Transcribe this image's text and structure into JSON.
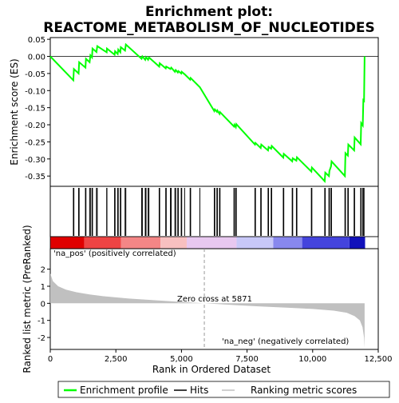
{
  "chart_data": {
    "type": "line",
    "title_line1": "Enrichment plot:",
    "title_line2": "REACTOME_METABOLISM_OF_NUCLEOTIDES",
    "es_panel": {
      "ylabel": "Enrichment score (ES)",
      "ylim": [
        -0.38,
        0.055
      ],
      "yticks": [
        0.05,
        0.0,
        -0.05,
        -0.1,
        -0.15,
        -0.2,
        -0.25,
        -0.3,
        -0.35
      ],
      "ytick_labels": [
        "0.05",
        "0.00",
        "-0.05",
        "-0.10",
        "-0.15",
        "-0.20",
        "-0.25",
        "-0.30",
        "-0.35"
      ],
      "line_color": "#00ff00",
      "series_name": "Enrichment profile",
      "points": [
        [
          0,
          0.0
        ],
        [
          880,
          -0.07
        ],
        [
          900,
          -0.037
        ],
        [
          1080,
          -0.05
        ],
        [
          1100,
          -0.017
        ],
        [
          1340,
          -0.033
        ],
        [
          1360,
          -0.007
        ],
        [
          1500,
          -0.017
        ],
        [
          1530,
          0.003
        ],
        [
          1590,
          -0.003
        ],
        [
          1610,
          0.023
        ],
        [
          1760,
          0.013
        ],
        [
          1790,
          0.03
        ],
        [
          2150,
          0.012
        ],
        [
          2160,
          0.023
        ],
        [
          2450,
          0.005
        ],
        [
          2470,
          0.015
        ],
        [
          2570,
          0.007
        ],
        [
          2590,
          0.02
        ],
        [
          2670,
          0.012
        ],
        [
          2690,
          0.027
        ],
        [
          2850,
          0.017
        ],
        [
          2880,
          0.035
        ],
        [
          3480,
          -0.007
        ],
        [
          3510,
          0.0
        ],
        [
          3620,
          -0.01
        ],
        [
          3650,
          -0.002
        ],
        [
          3730,
          -0.01
        ],
        [
          3760,
          -0.003
        ],
        [
          4150,
          -0.03
        ],
        [
          4170,
          -0.02
        ],
        [
          4400,
          -0.035
        ],
        [
          4420,
          -0.03
        ],
        [
          4580,
          -0.037
        ],
        [
          4610,
          -0.033
        ],
        [
          4750,
          -0.045
        ],
        [
          4780,
          -0.04
        ],
        [
          4860,
          -0.047
        ],
        [
          4880,
          -0.043
        ],
        [
          4990,
          -0.05
        ],
        [
          5010,
          -0.045
        ],
        [
          5120,
          -0.052
        ],
        [
          5330,
          -0.068
        ],
        [
          5350,
          -0.063
        ],
        [
          5700,
          -0.09
        ],
        [
          6250,
          -0.16
        ],
        [
          6270,
          -0.155
        ],
        [
          6350,
          -0.162
        ],
        [
          6370,
          -0.158
        ],
        [
          6450,
          -0.168
        ],
        [
          6470,
          -0.163
        ],
        [
          7000,
          -0.205
        ],
        [
          7020,
          -0.2
        ],
        [
          7070,
          -0.207
        ],
        [
          7090,
          -0.198
        ],
        [
          7800,
          -0.258
        ],
        [
          7820,
          -0.253
        ],
        [
          8020,
          -0.268
        ],
        [
          8040,
          -0.258
        ],
        [
          8300,
          -0.275
        ],
        [
          8320,
          -0.265
        ],
        [
          8420,
          -0.27
        ],
        [
          8440,
          -0.262
        ],
        [
          8880,
          -0.296
        ],
        [
          8900,
          -0.285
        ],
        [
          9220,
          -0.307
        ],
        [
          9240,
          -0.298
        ],
        [
          9380,
          -0.305
        ],
        [
          9400,
          -0.295
        ],
        [
          9950,
          -0.337
        ],
        [
          9970,
          -0.325
        ],
        [
          10460,
          -0.365
        ],
        [
          10480,
          -0.34
        ],
        [
          10620,
          -0.35
        ],
        [
          10640,
          -0.335
        ],
        [
          10700,
          -0.322
        ],
        [
          10720,
          -0.307
        ],
        [
          11230,
          -0.35
        ],
        [
          11250,
          -0.283
        ],
        [
          11340,
          -0.29
        ],
        [
          11360,
          -0.258
        ],
        [
          11580,
          -0.275
        ],
        [
          11600,
          -0.237
        ],
        [
          11830,
          -0.257
        ],
        [
          11850,
          -0.195
        ],
        [
          11910,
          -0.202
        ],
        [
          11930,
          -0.128
        ],
        [
          11960,
          -0.13
        ],
        [
          11980,
          0.0
        ]
      ]
    },
    "hits": [
      880,
      900,
      1080,
      1100,
      1340,
      1360,
      1500,
      1530,
      1590,
      1610,
      1760,
      1790,
      2150,
      2160,
      2450,
      2470,
      2570,
      2590,
      2670,
      2690,
      2850,
      2880,
      3480,
      3510,
      3620,
      3650,
      3730,
      3760,
      4150,
      4170,
      4400,
      4420,
      4580,
      4610,
      4750,
      4780,
      4860,
      4880,
      4990,
      5010,
      5120,
      5330,
      5350,
      5700,
      6250,
      6270,
      6350,
      6370,
      6450,
      6470,
      7000,
      7020,
      7070,
      7090,
      7800,
      7820,
      8020,
      8040,
      8300,
      8320,
      8420,
      8440,
      8880,
      8900,
      9220,
      9240,
      9380,
      9400,
      9950,
      9970,
      10460,
      10480,
      10620,
      10640,
      10700,
      10720,
      11230,
      11250,
      11340,
      11360,
      11580,
      11600,
      11830,
      11850,
      11910,
      11930,
      11960
    ],
    "rank_panel": {
      "ylabel": "Ranked list metric (PreRanked)",
      "xlabel": "Rank in Ordered Dataset",
      "ylim": [
        -2.7,
        3.2
      ],
      "yticks": [
        2,
        1,
        0,
        -1,
        -2
      ],
      "ytick_labels": [
        "2",
        "1",
        "0",
        "-1",
        "-2"
      ],
      "xlim": [
        0,
        12500
      ],
      "xticks": [
        0,
        2500,
        5000,
        7500,
        10000,
        12500
      ],
      "xtick_labels": [
        "0",
        "2,500",
        "5,000",
        "7,500",
        "10,000",
        "12,500"
      ],
      "fill_color": "#c0c0c0",
      "curve": [
        [
          0,
          1.75
        ],
        [
          100,
          1.3
        ],
        [
          300,
          1.0
        ],
        [
          600,
          0.8
        ],
        [
          1000,
          0.65
        ],
        [
          1500,
          0.52
        ],
        [
          2000,
          0.42
        ],
        [
          3000,
          0.28
        ],
        [
          4000,
          0.18
        ],
        [
          5000,
          0.08
        ],
        [
          5871,
          0.0
        ],
        [
          7000,
          -0.1
        ],
        [
          8000,
          -0.18
        ],
        [
          9000,
          -0.25
        ],
        [
          10000,
          -0.33
        ],
        [
          10800,
          -0.43
        ],
        [
          11300,
          -0.55
        ],
        [
          11600,
          -0.75
        ],
        [
          11800,
          -1.0
        ],
        [
          11900,
          -1.4
        ],
        [
          11960,
          -2.0
        ],
        [
          11980,
          -2.6
        ]
      ],
      "zero_cross_rank": 5871,
      "zero_cross_label": "Zero cross at 5871",
      "pos_label": "'na_pos' (positively correlated)",
      "neg_label": "'na_neg' (negatively correlated)",
      "pos_label_color": "#cc0000",
      "neg_label_color": "#0000cc"
    },
    "heat_bar": {
      "colors": [
        "#e00000",
        "#ee4444",
        "#f48686",
        "#f8c0c0",
        "#e8c8f0",
        "#c8c8f8",
        "#8888ee",
        "#4444dd",
        "#1111bb"
      ],
      "breaks": [
        0,
        1300,
        2700,
        4200,
        5200,
        7100,
        8500,
        9600,
        11400,
        12000
      ]
    },
    "legend": [
      {
        "label": "Enrichment profile",
        "color": "#00ff00"
      },
      {
        "label": "Hits",
        "color": "#000000"
      },
      {
        "label": "Ranking metric scores",
        "color": "#c0c0c0"
      }
    ],
    "n_ranks": 12000
  }
}
